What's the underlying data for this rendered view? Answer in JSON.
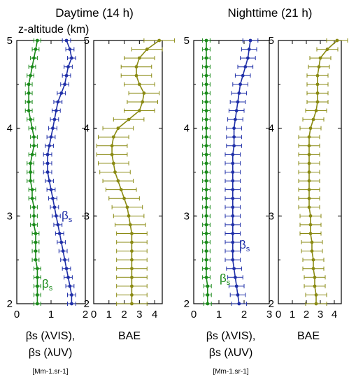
{
  "figure": {
    "panels_title_day": "Daytime (14 h)",
    "panels_title_night": "Nighttime (21 h)",
    "y_axis_label": "z-altitude (km)",
    "xlabel_bs_line1": "βs (λVIS),",
    "xlabel_bs_line2": "βs (λUV)",
    "xlabel_bs_unit": "[Mm-1.sr-1]",
    "xlabel_bae": "BAE",
    "label_beta": "β",
    "label_sub": "s"
  },
  "colors": {
    "vis_series": "#1a8a1a",
    "uv_series": "#1f2fa8",
    "bae_series": "#8a8a12"
  },
  "chart_data": [
    {
      "type": "line",
      "panel": "day-backscatter",
      "title": "Daytime (14 h)",
      "ylabel": "z-altitude (km)",
      "xlabel": "βs (λVIS), βs (λUV) [Mm-1.sr-1]",
      "xlim": [
        0,
        2
      ],
      "ylim": [
        2,
        5
      ],
      "xticks": [
        0,
        1,
        2
      ],
      "yticks": [
        2,
        3,
        4,
        5
      ],
      "series": [
        {
          "name": "βs (λVIS)",
          "color_key": "vis_series",
          "points": [
            [
              0.6,
              2.0
            ],
            [
              0.6,
              2.1
            ],
            [
              0.6,
              2.2
            ],
            [
              0.6,
              2.3
            ],
            [
              0.6,
              2.4
            ],
            [
              0.55,
              2.5
            ],
            [
              0.55,
              2.6
            ],
            [
              0.55,
              2.7
            ],
            [
              0.55,
              2.8
            ],
            [
              0.5,
              2.9
            ],
            [
              0.5,
              3.0
            ],
            [
              0.5,
              3.1
            ],
            [
              0.45,
              3.2
            ],
            [
              0.45,
              3.3
            ],
            [
              0.4,
              3.4
            ],
            [
              0.4,
              3.5
            ],
            [
              0.4,
              3.6
            ],
            [
              0.45,
              3.7
            ],
            [
              0.5,
              3.8
            ],
            [
              0.5,
              3.9
            ],
            [
              0.45,
              4.0
            ],
            [
              0.4,
              4.1
            ],
            [
              0.35,
              4.2
            ],
            [
              0.35,
              4.3
            ],
            [
              0.35,
              4.4
            ],
            [
              0.35,
              4.5
            ],
            [
              0.4,
              4.6
            ],
            [
              0.45,
              4.7
            ],
            [
              0.5,
              4.8
            ],
            [
              0.55,
              4.9
            ],
            [
              0.6,
              5.0
            ]
          ],
          "error": 0.1
        },
        {
          "name": "βs (λUV)",
          "color_key": "uv_series",
          "points": [
            [
              1.6,
              2.0
            ],
            [
              1.6,
              2.1
            ],
            [
              1.55,
              2.2
            ],
            [
              1.5,
              2.3
            ],
            [
              1.45,
              2.4
            ],
            [
              1.4,
              2.5
            ],
            [
              1.35,
              2.6
            ],
            [
              1.3,
              2.7
            ],
            [
              1.25,
              2.8
            ],
            [
              1.2,
              2.9
            ],
            [
              1.15,
              3.0
            ],
            [
              1.1,
              3.1
            ],
            [
              1.05,
              3.2
            ],
            [
              1.0,
              3.3
            ],
            [
              0.95,
              3.4
            ],
            [
              0.9,
              3.5
            ],
            [
              0.9,
              3.6
            ],
            [
              0.9,
              3.7
            ],
            [
              0.95,
              3.8
            ],
            [
              1.0,
              3.9
            ],
            [
              1.05,
              4.0
            ],
            [
              1.1,
              4.1
            ],
            [
              1.15,
              4.2
            ],
            [
              1.2,
              4.3
            ],
            [
              1.3,
              4.4
            ],
            [
              1.4,
              4.5
            ],
            [
              1.45,
              4.6
            ],
            [
              1.5,
              4.7
            ],
            [
              1.6,
              4.8
            ],
            [
              1.55,
              4.9
            ],
            [
              1.45,
              5.0
            ]
          ],
          "error": 0.12
        }
      ]
    },
    {
      "type": "line",
      "panel": "day-bae",
      "xlabel": "BAE",
      "xlim": [
        0,
        4.5
      ],
      "ylim": [
        2,
        5
      ],
      "xticks": [
        0,
        1,
        2,
        3,
        4
      ],
      "yticks": [
        2,
        3,
        4,
        5
      ],
      "series": [
        {
          "name": "BAE",
          "color_key": "bae_series",
          "points": [
            [
              2.5,
              2.0
            ],
            [
              2.5,
              2.1
            ],
            [
              2.5,
              2.2
            ],
            [
              2.5,
              2.3
            ],
            [
              2.5,
              2.4
            ],
            [
              2.5,
              2.5
            ],
            [
              2.5,
              2.6
            ],
            [
              2.5,
              2.7
            ],
            [
              2.5,
              2.8
            ],
            [
              2.4,
              2.9
            ],
            [
              2.3,
              3.0
            ],
            [
              2.2,
              3.1
            ],
            [
              2.0,
              3.2
            ],
            [
              1.8,
              3.3
            ],
            [
              1.6,
              3.4
            ],
            [
              1.4,
              3.5
            ],
            [
              1.3,
              3.6
            ],
            [
              1.2,
              3.7
            ],
            [
              1.2,
              3.8
            ],
            [
              1.3,
              3.9
            ],
            [
              1.6,
              4.0
            ],
            [
              2.3,
              4.1
            ],
            [
              3.0,
              4.2
            ],
            [
              3.2,
              4.3
            ],
            [
              3.3,
              4.4
            ],
            [
              3.0,
              4.5
            ],
            [
              2.8,
              4.6
            ],
            [
              2.8,
              4.7
            ],
            [
              3.0,
              4.8
            ],
            [
              3.5,
              4.9
            ],
            [
              4.3,
              5.0
            ]
          ],
          "error": 1.0
        }
      ]
    },
    {
      "type": "line",
      "panel": "night-backscatter",
      "title": "Nighttime (21 h)",
      "xlabel": "βs (λVIS), βs (λUV) [Mm-1.sr-1]",
      "xlim": [
        0,
        3
      ],
      "ylim": [
        2,
        5
      ],
      "xticks": [
        0,
        1,
        2,
        3
      ],
      "yticks": [
        2,
        3,
        4,
        5
      ],
      "series": [
        {
          "name": "βs (λVIS)",
          "color_key": "vis_series",
          "points": [
            [
              0.55,
              2.0
            ],
            [
              0.55,
              2.1
            ],
            [
              0.55,
              2.2
            ],
            [
              0.5,
              2.3
            ],
            [
              0.5,
              2.4
            ],
            [
              0.5,
              2.5
            ],
            [
              0.5,
              2.6
            ],
            [
              0.5,
              2.7
            ],
            [
              0.5,
              2.8
            ],
            [
              0.5,
              2.9
            ],
            [
              0.5,
              3.0
            ],
            [
              0.5,
              3.1
            ],
            [
              0.5,
              3.2
            ],
            [
              0.5,
              3.3
            ],
            [
              0.5,
              3.4
            ],
            [
              0.5,
              3.5
            ],
            [
              0.5,
              3.6
            ],
            [
              0.5,
              3.7
            ],
            [
              0.5,
              3.8
            ],
            [
              0.5,
              3.9
            ],
            [
              0.5,
              4.0
            ],
            [
              0.5,
              4.1
            ],
            [
              0.5,
              4.2
            ],
            [
              0.5,
              4.3
            ],
            [
              0.5,
              4.4
            ],
            [
              0.5,
              4.5
            ],
            [
              0.5,
              4.6
            ],
            [
              0.5,
              4.7
            ],
            [
              0.5,
              4.8
            ],
            [
              0.5,
              4.9
            ],
            [
              0.5,
              5.0
            ]
          ],
          "error": 0.15
        },
        {
          "name": "βs (λUV)",
          "color_key": "uv_series",
          "points": [
            [
              1.8,
              2.0
            ],
            [
              1.75,
              2.1
            ],
            [
              1.7,
              2.2
            ],
            [
              1.65,
              2.3
            ],
            [
              1.6,
              2.4
            ],
            [
              1.55,
              2.5
            ],
            [
              1.55,
              2.6
            ],
            [
              1.55,
              2.7
            ],
            [
              1.55,
              2.8
            ],
            [
              1.55,
              2.9
            ],
            [
              1.55,
              3.0
            ],
            [
              1.55,
              3.1
            ],
            [
              1.55,
              3.2
            ],
            [
              1.55,
              3.3
            ],
            [
              1.55,
              3.4
            ],
            [
              1.55,
              3.5
            ],
            [
              1.55,
              3.6
            ],
            [
              1.55,
              3.7
            ],
            [
              1.6,
              3.8
            ],
            [
              1.6,
              3.9
            ],
            [
              1.6,
              4.0
            ],
            [
              1.65,
              4.1
            ],
            [
              1.7,
              4.2
            ],
            [
              1.75,
              4.3
            ],
            [
              1.8,
              4.4
            ],
            [
              1.85,
              4.5
            ],
            [
              1.95,
              4.6
            ],
            [
              2.05,
              4.7
            ],
            [
              2.15,
              4.8
            ],
            [
              2.2,
              4.9
            ],
            [
              2.25,
              5.0
            ]
          ],
          "error": 0.3
        }
      ]
    },
    {
      "type": "line",
      "panel": "night-bae",
      "xlabel": "BAE",
      "xlim": [
        0,
        4.5
      ],
      "ylim": [
        2,
        5
      ],
      "xticks": [
        0,
        1,
        2,
        3,
        4
      ],
      "yticks": [
        2,
        3,
        4,
        5
      ],
      "series": [
        {
          "name": "BAE",
          "color_key": "bae_series",
          "points": [
            [
              2.7,
              2.0
            ],
            [
              2.7,
              2.1
            ],
            [
              2.6,
              2.2
            ],
            [
              2.6,
              2.3
            ],
            [
              2.5,
              2.4
            ],
            [
              2.5,
              2.5
            ],
            [
              2.4,
              2.6
            ],
            [
              2.4,
              2.7
            ],
            [
              2.3,
              2.8
            ],
            [
              2.3,
              2.9
            ],
            [
              2.3,
              3.0
            ],
            [
              2.2,
              3.1
            ],
            [
              2.2,
              3.2
            ],
            [
              2.2,
              3.3
            ],
            [
              2.2,
              3.4
            ],
            [
              2.2,
              3.5
            ],
            [
              2.2,
              3.6
            ],
            [
              2.2,
              3.7
            ],
            [
              2.2,
              3.8
            ],
            [
              2.2,
              3.9
            ],
            [
              2.3,
              4.0
            ],
            [
              2.5,
              4.1
            ],
            [
              2.7,
              4.2
            ],
            [
              2.8,
              4.3
            ],
            [
              2.8,
              4.4
            ],
            [
              2.8,
              4.5
            ],
            [
              2.8,
              4.6
            ],
            [
              2.9,
              4.7
            ],
            [
              3.0,
              4.8
            ],
            [
              3.5,
              4.9
            ],
            [
              4.2,
              5.0
            ]
          ],
          "error": 0.75
        }
      ]
    }
  ]
}
